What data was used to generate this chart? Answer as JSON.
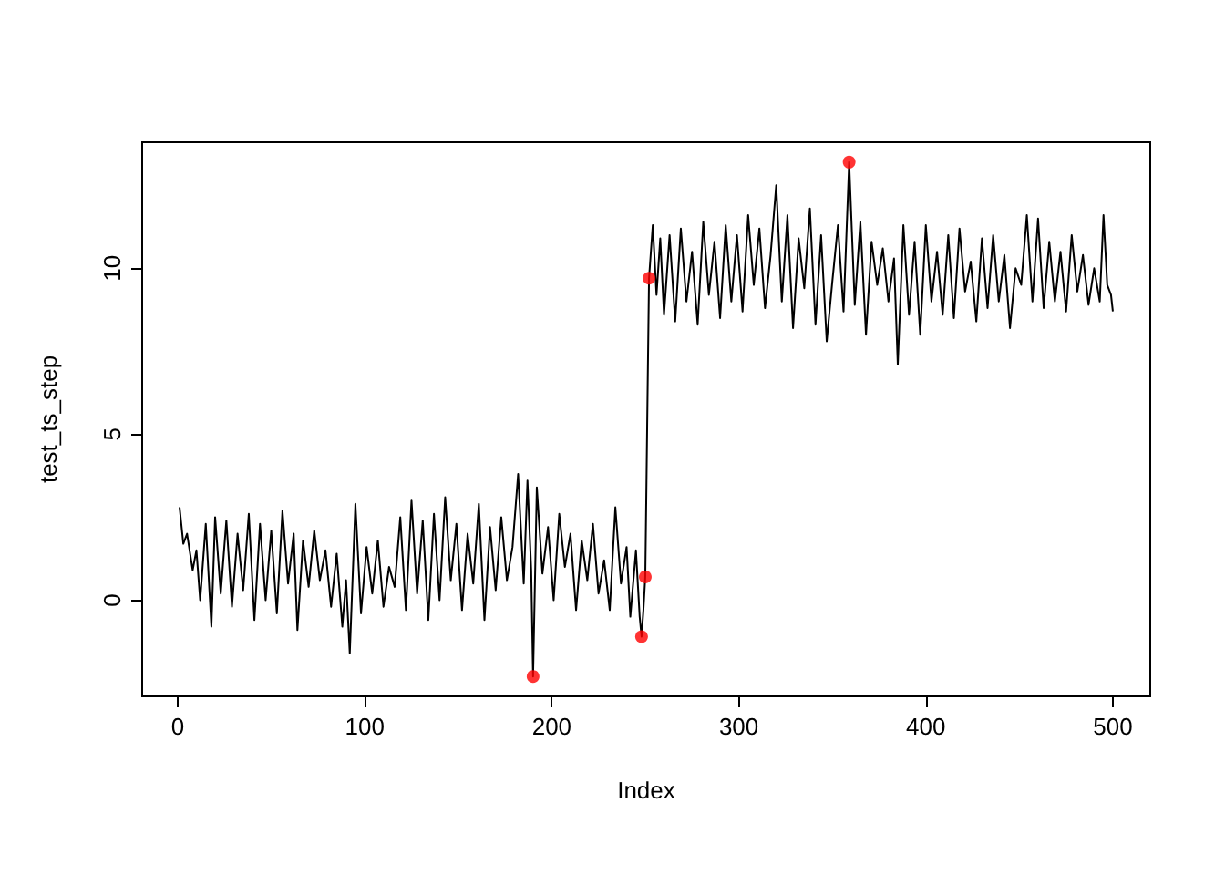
{
  "chart_data": {
    "type": "line",
    "xlabel": "Index",
    "ylabel": "test_ts_step",
    "xlim": [
      -19,
      520
    ],
    "ylim": [
      -2.9,
      13.8
    ],
    "xticks": [
      0,
      100,
      200,
      300,
      400,
      500
    ],
    "yticks": [
      0,
      5,
      10
    ],
    "grid": false,
    "series": [
      {
        "color": "#000000",
        "marker": "none",
        "line_style": "solid",
        "x": [
          1,
          3,
          5,
          8,
          10,
          12,
          15,
          18,
          20,
          23,
          26,
          29,
          32,
          35,
          38,
          41,
          44,
          47,
          50,
          53,
          56,
          59,
          62,
          64,
          67,
          70,
          73,
          76,
          79,
          82,
          85,
          88,
          90,
          92,
          95,
          98,
          101,
          104,
          107,
          110,
          113,
          116,
          119,
          122,
          125,
          128,
          131,
          134,
          137,
          140,
          143,
          146,
          149,
          152,
          155,
          158,
          161,
          164,
          167,
          170,
          173,
          176,
          179,
          182,
          185,
          187,
          189,
          190,
          192,
          195,
          198,
          201,
          204,
          207,
          210,
          213,
          216,
          219,
          222,
          225,
          228,
          231,
          234,
          237,
          240,
          242,
          245,
          247,
          248,
          249,
          250,
          251,
          252,
          254,
          256,
          258,
          260,
          263,
          266,
          269,
          272,
          275,
          278,
          281,
          284,
          287,
          290,
          293,
          296,
          299,
          302,
          305,
          308,
          311,
          314,
          317,
          320,
          323,
          326,
          329,
          332,
          335,
          338,
          341,
          344,
          347,
          350,
          353,
          356,
          359,
          362,
          365,
          368,
          371,
          374,
          377,
          380,
          383,
          385,
          388,
          391,
          394,
          397,
          400,
          403,
          406,
          409,
          412,
          415,
          418,
          421,
          424,
          427,
          430,
          433,
          436,
          439,
          442,
          445,
          448,
          451,
          454,
          457,
          460,
          463,
          466,
          469,
          472,
          475,
          478,
          481,
          484,
          487,
          490,
          493,
          495,
          497,
          499,
          500
        ],
        "values": [
          2.8,
          1.7,
          2.0,
          0.9,
          1.5,
          0.0,
          2.3,
          -0.8,
          2.5,
          0.2,
          2.4,
          -0.2,
          2.0,
          0.3,
          2.6,
          -0.6,
          2.3,
          0.0,
          2.1,
          -0.4,
          2.7,
          0.5,
          2.0,
          -0.9,
          1.8,
          0.4,
          2.1,
          0.6,
          1.5,
          -0.2,
          1.4,
          -0.8,
          0.6,
          -1.6,
          2.9,
          -0.4,
          1.6,
          0.2,
          1.8,
          -0.2,
          1.0,
          0.4,
          2.5,
          -0.3,
          3.0,
          0.2,
          2.4,
          -0.6,
          2.6,
          0.0,
          3.1,
          0.6,
          2.3,
          -0.3,
          2.0,
          0.5,
          2.9,
          -0.6,
          2.2,
          0.3,
          2.5,
          0.6,
          1.6,
          3.8,
          0.5,
          3.6,
          0.9,
          -2.3,
          3.4,
          0.8,
          2.2,
          0.0,
          2.6,
          1.0,
          2.0,
          -0.3,
          1.8,
          0.6,
          2.3,
          0.2,
          1.2,
          -0.3,
          2.8,
          0.5,
          1.6,
          -0.5,
          1.5,
          -0.5,
          -1.1,
          -0.3,
          0.7,
          5.2,
          9.7,
          11.3,
          9.2,
          10.9,
          8.6,
          11.0,
          8.4,
          11.2,
          9.0,
          10.5,
          8.3,
          11.4,
          9.2,
          10.8,
          8.5,
          11.3,
          9.0,
          11.0,
          8.7,
          11.6,
          9.5,
          11.2,
          8.8,
          10.4,
          12.5,
          9.0,
          11.6,
          8.2,
          10.9,
          9.4,
          11.8,
          8.3,
          11.0,
          7.8,
          9.6,
          11.3,
          8.7,
          13.2,
          8.9,
          11.4,
          8.0,
          10.8,
          9.5,
          10.6,
          9.0,
          10.3,
          7.1,
          11.3,
          8.6,
          10.8,
          8.0,
          11.3,
          9.0,
          10.5,
          8.6,
          11.0,
          8.5,
          11.2,
          9.3,
          10.2,
          8.4,
          10.9,
          8.8,
          11.0,
          9.0,
          10.4,
          8.2,
          10.0,
          9.5,
          11.6,
          9.0,
          11.5,
          8.8,
          10.8,
          9.0,
          10.5,
          8.7,
          11.0,
          9.3,
          10.4,
          8.9,
          10.0,
          9.0,
          11.6,
          9.5,
          9.2,
          8.7
        ]
      },
      {
        "type": "scatter",
        "color": "#ff0000",
        "marker": "circle",
        "x": [
          190,
          248,
          250,
          252,
          359
        ],
        "values": [
          -2.3,
          -1.1,
          0.7,
          9.7,
          13.2
        ]
      }
    ]
  }
}
